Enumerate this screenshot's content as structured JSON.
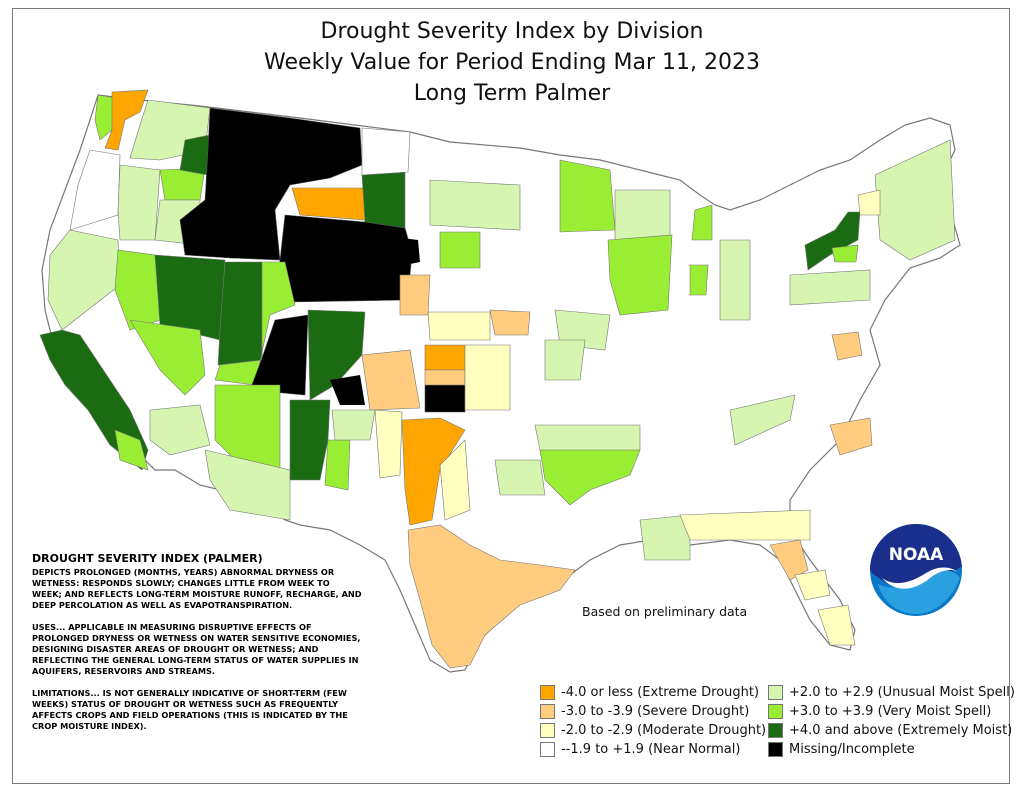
{
  "title": {
    "line1": "Drought Severity Index by Division",
    "line2": "Weekly Value for Period Ending Mar 11, 2023",
    "line3": "Long Term Palmer"
  },
  "notes": {
    "heading": "DROUGHT SEVERITY INDEX (PALMER)",
    "p1": "DEPICTS PROLONGED (MONTHS, YEARS) ABNORMAL DRYNESS OR WETNESS: RESPONDS SLOWLY; CHANGES LITTLE FROM WEEK TO WEEK; AND REFLECTS LONG-TERM MOISTURE RUNOFF, RECHARGE, AND DEEP PERCOLATION AS WELL AS EVAPOTRANSPIRATION.",
    "p2": "USES... APPLICABLE IN MEASURING DISRUPTIVE EFFECTS OF PROLONGED DRYNESS OR WETNESS ON WATER SENSITIVE ECONOMIES, DESIGNING DISASTER AREAS OF DROUGHT OR WETNESS; AND REFLECTING THE GENERAL LONG-TERM STATUS OF WATER SUPPLIES IN AQUIFERS, RESERVOIRS AND STREAMS.",
    "p3": "LIMITATIONS... IS NOT GENERALLY INDICATIVE OF SHORT-TERM (FEW WEEKS) STATUS OF DROUGHT OR WETNESS SUCH AS FREQUENTLY AFFECTS CROPS AND FIELD OPERATIONS (THIS IS INDICATED BY THE CROP MOISTURE INDEX)."
  },
  "prelim_note": "Based on preliminary data",
  "legend": [
    {
      "label": "-4.0 or less (Extreme Drought)",
      "color": "#ffa500"
    },
    {
      "label": "-3.0 to -3.9 (Severe Drought)",
      "color": "#ffcc80"
    },
    {
      "label": "-2.0 to -2.9 (Moderate Drought)",
      "color": "#ffffc0"
    },
    {
      "label": "--1.9 to +1.9 (Near Normal)",
      "color": "#ffffff"
    },
    {
      "label": "+2.0 to +2.9 (Unusual Moist Spell)",
      "color": "#d6f5b0"
    },
    {
      "label": "+3.0 to +3.9 (Very Moist Spell)",
      "color": "#99ee33"
    },
    {
      "label": "+4.0 and above (Extremely Moist)",
      "color": "#1a6b12"
    },
    {
      "label": "Missing/Incomplete",
      "color": "#000000"
    }
  ],
  "logo": {
    "text": "NOAA"
  },
  "colors": {
    "extreme_drought": "#ffa500",
    "severe_drought": "#ffcc80",
    "moderate_drought": "#ffffc0",
    "near_normal": "#ffffff",
    "unusual_moist": "#d6f5b0",
    "very_moist": "#99ee33",
    "extremely_moist": "#1a6b12",
    "missing": "#000000"
  }
}
